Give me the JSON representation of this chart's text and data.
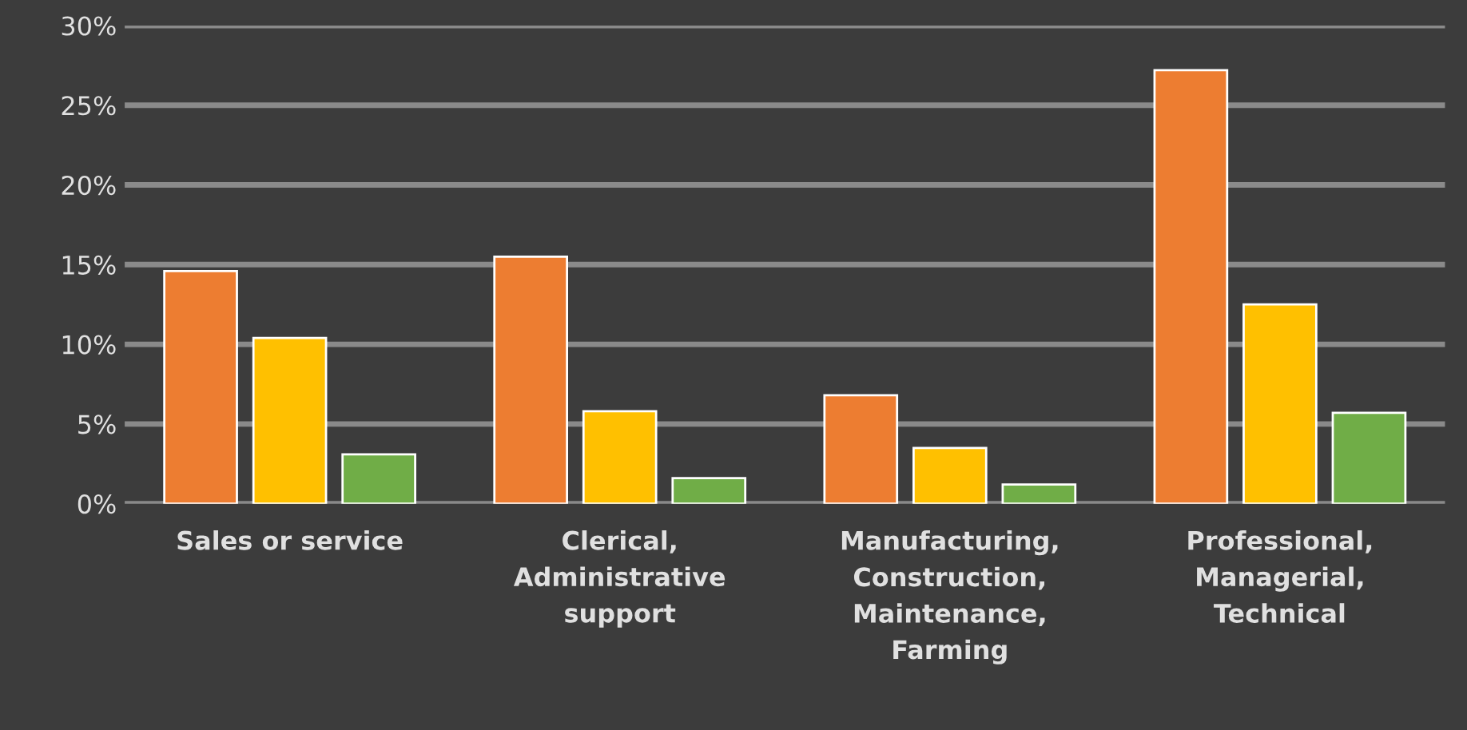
{
  "chart_data": {
    "type": "bar",
    "categories": [
      "Sales or service",
      "Clerical,\nAdministrative\nsupport",
      "Manufacturing,\nConstruction,\nMaintenance,\nFarming",
      "Professional,\nManagerial,\nTechnical"
    ],
    "series": [
      {
        "color": "#ed7d31",
        "values": [
          14.6,
          15.5,
          6.8,
          27.2
        ]
      },
      {
        "color": "#ffc000",
        "values": [
          10.4,
          5.8,
          3.5,
          12.5
        ]
      },
      {
        "color": "#70ad47",
        "values": [
          3.1,
          1.6,
          1.2,
          5.7
        ]
      }
    ],
    "ylim": [
      0,
      30
    ],
    "yticks": [
      {
        "value": 0,
        "label": "0%"
      },
      {
        "value": 5,
        "label": "5%"
      },
      {
        "value": 10,
        "label": "10%"
      },
      {
        "value": 15,
        "label": "15%"
      },
      {
        "value": 20,
        "label": "20%"
      },
      {
        "value": 25,
        "label": "25%"
      },
      {
        "value": 30,
        "label": "30%"
      }
    ],
    "grid": "y",
    "legend": false
  }
}
